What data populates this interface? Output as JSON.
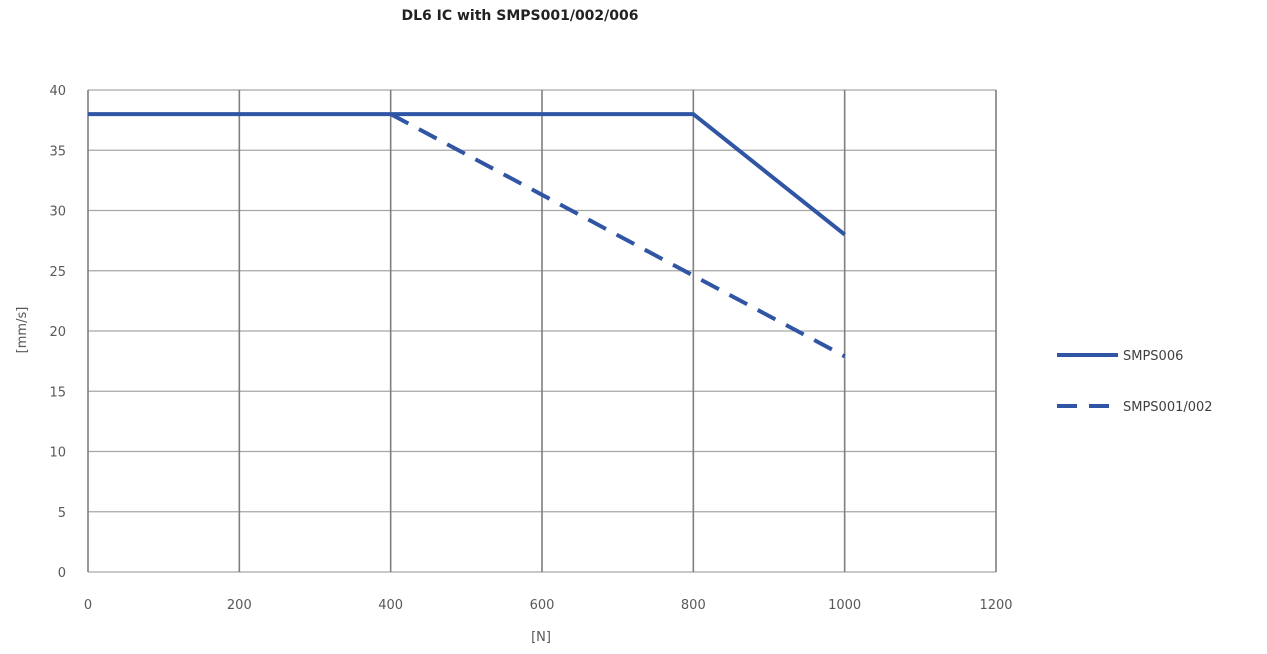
{
  "chart_data": {
    "type": "line",
    "title": "DL6 IC with SMPS001/002/006",
    "xlabel": "[N]",
    "ylabel": "[mm/s]",
    "xlim": [
      0,
      1200
    ],
    "ylim": [
      0,
      40
    ],
    "xticks": [
      0,
      200,
      400,
      600,
      800,
      1000,
      1200
    ],
    "yticks": [
      0,
      5,
      10,
      15,
      20,
      25,
      30,
      35,
      40
    ],
    "xtick_labels": [
      "0",
      "200",
      "400",
      "600",
      "800",
      "1000",
      "1200"
    ],
    "ytick_labels": [
      "0",
      "5",
      "10",
      "15",
      "20",
      "25",
      "30",
      "35",
      "40"
    ],
    "grid": true,
    "legend_position": "right",
    "series": [
      {
        "name": "SMPS006",
        "line_style": "solid",
        "color": "#2f55a4",
        "x": [
          0,
          400,
          800,
          1000
        ],
        "y": [
          38,
          38,
          38,
          28
        ]
      },
      {
        "name": "SMPS001/002",
        "line_style": "dashed",
        "color": "#2f55a4",
        "x": [
          400,
          600,
          800,
          1000
        ],
        "y": [
          38,
          31.3,
          24.6,
          17.9
        ]
      }
    ]
  }
}
